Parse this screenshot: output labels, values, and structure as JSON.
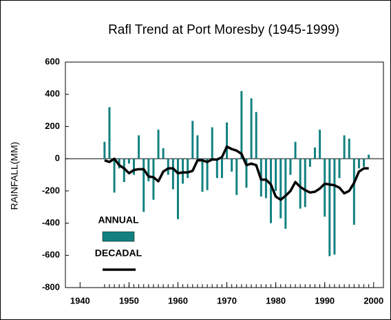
{
  "chart_data": {
    "type": "bar_line",
    "title": "Rafl Trend at Port Moresby (1945-1999)",
    "ylabel": "RAINFALL(MM)",
    "x": [
      1945,
      1946,
      1947,
      1948,
      1949,
      1950,
      1951,
      1952,
      1953,
      1954,
      1955,
      1956,
      1957,
      1958,
      1959,
      1960,
      1961,
      1962,
      1963,
      1964,
      1965,
      1966,
      1967,
      1968,
      1969,
      1970,
      1971,
      1972,
      1973,
      1974,
      1975,
      1976,
      1977,
      1978,
      1979,
      1980,
      1981,
      1982,
      1983,
      1984,
      1985,
      1986,
      1987,
      1988,
      1989,
      1990,
      1991,
      1992,
      1993,
      1994,
      1995,
      1996,
      1997,
      1998,
      1999
    ],
    "series": [
      {
        "name": "ANNUAL",
        "type": "bar",
        "color": "#128080",
        "values": [
          105,
          320,
          -210,
          -60,
          -145,
          -30,
          -100,
          145,
          -330,
          -140,
          -255,
          180,
          65,
          -100,
          -190,
          -375,
          -155,
          -120,
          235,
          145,
          -205,
          -195,
          195,
          -120,
          -120,
          225,
          -80,
          -225,
          420,
          -180,
          375,
          290,
          -235,
          -245,
          -400,
          -200,
          -370,
          -435,
          -100,
          105,
          -310,
          -300,
          -50,
          70,
          180,
          -360,
          -605,
          -595,
          -120,
          145,
          125,
          -410,
          -60,
          -50,
          25
        ]
      },
      {
        "name": "DECADAL",
        "type": "line",
        "color": "#000000",
        "values": [
          -10,
          -20,
          0,
          -40,
          -60,
          -90,
          -70,
          -65,
          -65,
          -110,
          -115,
          -140,
          -80,
          -60,
          -60,
          -90,
          -85,
          -85,
          -75,
          -10,
          -10,
          -20,
          -5,
          -5,
          10,
          75,
          60,
          50,
          30,
          -40,
          -30,
          -40,
          -130,
          -130,
          -160,
          -235,
          -255,
          -230,
          -200,
          -145,
          -175,
          -195,
          -210,
          -205,
          -185,
          -155,
          -160,
          -165,
          -180,
          -215,
          -200,
          -150,
          -80,
          -60,
          -60
        ]
      }
    ],
    "xlim": [
      1937,
      2002
    ],
    "xticks": [
      1940,
      1950,
      1960,
      1970,
      1980,
      1990,
      2000
    ],
    "ylim": [
      -800,
      600
    ],
    "yticks": [
      -800,
      -600,
      -400,
      -200,
      0,
      200,
      400,
      600
    ]
  }
}
